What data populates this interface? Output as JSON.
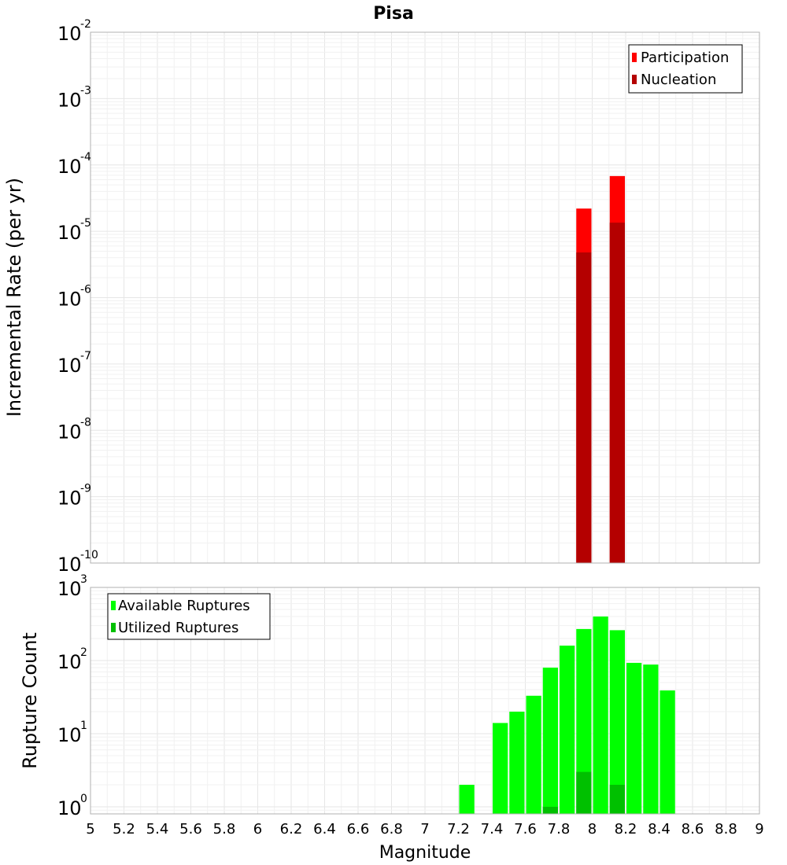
{
  "chart_data": [
    {
      "type": "bar",
      "title": "Pisa",
      "xlabel": "",
      "ylabel": "Incremental Rate (per yr)",
      "yscale": "log",
      "ylim": [
        1e-10,
        0.01
      ],
      "xlim": [
        5,
        9
      ],
      "ytick_exponents": [
        "-10",
        "-9",
        "-8",
        "-7",
        "-6",
        "-5",
        "-4",
        "-3",
        "-2"
      ],
      "bar_width": 0.1,
      "overlay": true,
      "grid": true,
      "legend_position": "top-right",
      "series": [
        {
          "name": "Participation",
          "color": "#ff0000",
          "x": [
            7.95,
            8.15
          ],
          "values": [
            2.2e-05,
            6.8e-05
          ]
        },
        {
          "name": "Nucleation",
          "color": "#b40000",
          "x": [
            7.95,
            8.15
          ],
          "values": [
            4.8e-06,
            1.35e-05
          ]
        }
      ]
    },
    {
      "type": "bar",
      "title": "",
      "xlabel": "Magnitude",
      "ylabel": "Rupture Count",
      "yscale": "log",
      "ylim": [
        0.8,
        1000
      ],
      "xlim": [
        5,
        9
      ],
      "xticks": [
        "5",
        "5.2",
        "5.4",
        "5.6",
        "5.8",
        "6",
        "6.2",
        "6.4",
        "6.6",
        "6.8",
        "7",
        "7.2",
        "7.4",
        "7.6",
        "7.8",
        "8",
        "8.2",
        "8.4",
        "8.6",
        "8.8",
        "9"
      ],
      "ytick_exponents": [
        "0",
        "1",
        "2",
        "3"
      ],
      "bar_width": 0.1,
      "overlay": true,
      "grid": true,
      "legend_position": "top-left",
      "series": [
        {
          "name": "Available Ruptures",
          "color": "#00ff00",
          "x": [
            7.25,
            7.45,
            7.55,
            7.65,
            7.75,
            7.85,
            7.95,
            8.05,
            8.15,
            8.25,
            8.35,
            8.45
          ],
          "values": [
            2,
            14,
            20,
            33,
            80,
            160,
            270,
            400,
            260,
            93,
            88,
            39
          ]
        },
        {
          "name": "Utilized Ruptures",
          "color": "#00c000",
          "x": [
            7.75,
            7.95,
            8.15
          ],
          "values": [
            1,
            3,
            2
          ]
        }
      ]
    }
  ]
}
